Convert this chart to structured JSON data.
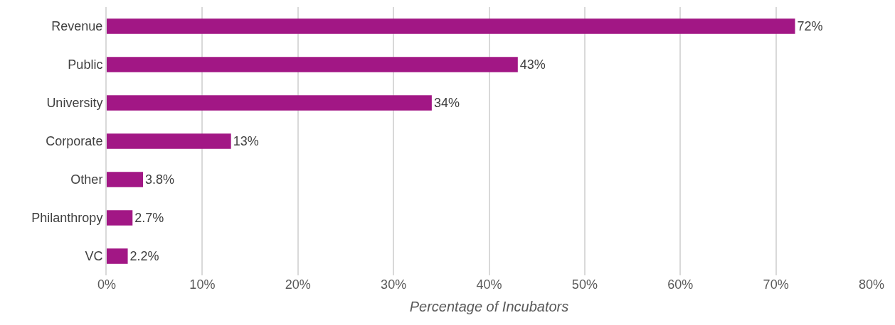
{
  "chart_data": {
    "type": "bar",
    "orientation": "horizontal",
    "xlabel": "Percentage of Incubators",
    "categories": [
      "Revenue",
      "Public",
      "University",
      "Corporate",
      "Other",
      "Philanthropy",
      "VC"
    ],
    "values": [
      72,
      43,
      34,
      13,
      3.8,
      2.7,
      2.2
    ],
    "value_labels": [
      "72%",
      "43%",
      "34%",
      "13%",
      "3.8%",
      "2.7%",
      "2.2%"
    ],
    "color": "#a21785",
    "xlim": [
      0,
      80
    ],
    "xticks": [
      {
        "value": 0,
        "label": "0%"
      },
      {
        "value": 10,
        "label": "10%"
      },
      {
        "value": 20,
        "label": "20%"
      },
      {
        "value": 30,
        "label": "30%"
      },
      {
        "value": 40,
        "label": "40%"
      },
      {
        "value": 50,
        "label": "50%"
      },
      {
        "value": 60,
        "label": "60%"
      },
      {
        "value": 70,
        "label": "70%"
      },
      {
        "value": 80,
        "label": "80%"
      }
    ],
    "grid": "x"
  }
}
